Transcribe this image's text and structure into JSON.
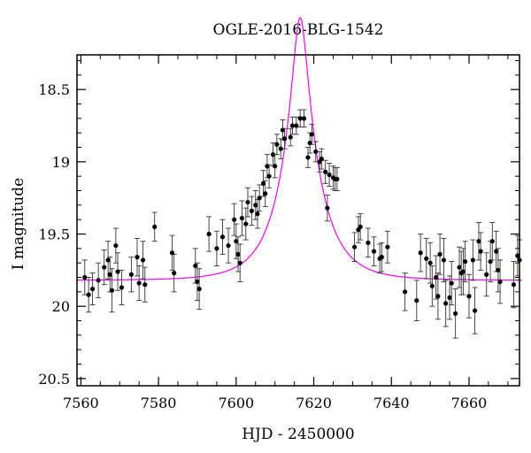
{
  "chart_data": {
    "type": "scatter",
    "title": "OGLE-2016-BLG-1542",
    "xlabel": "HJD - 2450000",
    "ylabel": "I magnitude",
    "xlim": [
      7559,
      7673
    ],
    "ylim": [
      20.55,
      18.26
    ],
    "y_inverted": true,
    "xticks": [
      7560,
      7580,
      7600,
      7620,
      7640,
      7660
    ],
    "yticks": [
      18.5,
      19,
      19.5,
      20,
      20.5
    ],
    "ytick_labels": [
      "18.5",
      "19",
      "19.5",
      "20",
      "20.5"
    ],
    "grid": false,
    "legend": "none",
    "colors": {
      "points": "#000000",
      "model": "#ff00ff"
    },
    "series": [
      {
        "kind": "data",
        "points": [
          [
            7561.0,
            19.8,
            0.12
          ],
          [
            7562.0,
            19.92,
            0.12
          ],
          [
            7563.0,
            19.88,
            0.11
          ],
          [
            7564.5,
            19.82,
            0.12
          ],
          [
            7566.0,
            19.73,
            0.12
          ],
          [
            7567.0,
            19.68,
            0.13
          ],
          [
            7567.5,
            19.78,
            0.12
          ],
          [
            7568.0,
            19.89,
            0.15
          ],
          [
            7569.0,
            19.58,
            0.12
          ],
          [
            7569.5,
            19.76,
            0.13
          ],
          [
            7570.5,
            19.87,
            0.12
          ],
          [
            7573.0,
            19.78,
            0.12
          ],
          [
            7574.5,
            19.66,
            0.13
          ],
          [
            7575.0,
            19.84,
            0.12
          ],
          [
            7576.0,
            19.68,
            0.13
          ],
          [
            7576.5,
            19.85,
            0.12
          ],
          [
            7579.0,
            19.45,
            0.1
          ],
          [
            7583.5,
            19.63,
            0.12
          ],
          [
            7584.0,
            19.77,
            0.13
          ],
          [
            7589.5,
            19.72,
            0.12
          ],
          [
            7590.0,
            19.83,
            0.13
          ],
          [
            7590.5,
            19.88,
            0.14
          ],
          [
            7593.0,
            19.5,
            0.12
          ],
          [
            7595.0,
            19.6,
            0.12
          ],
          [
            7596.5,
            19.52,
            0.12
          ],
          [
            7598.0,
            19.58,
            0.12
          ],
          [
            7599.5,
            19.4,
            0.11
          ],
          [
            7600.0,
            19.55,
            0.12
          ],
          [
            7600.5,
            19.64,
            0.12
          ],
          [
            7601.0,
            19.7,
            0.13
          ],
          [
            7601.5,
            19.39,
            0.12
          ],
          [
            7602.5,
            19.43,
            0.11
          ],
          [
            7603.0,
            19.28,
            0.1
          ],
          [
            7604.0,
            19.34,
            0.1
          ],
          [
            7605.0,
            19.3,
            0.1
          ],
          [
            7605.5,
            19.36,
            0.1
          ],
          [
            7606.0,
            19.25,
            0.09
          ],
          [
            7607.0,
            19.15,
            0.09
          ],
          [
            7607.5,
            19.22,
            0.09
          ],
          [
            7608.0,
            19.03,
            0.08
          ],
          [
            7608.5,
            19.1,
            0.08
          ],
          [
            7609.5,
            18.95,
            0.08
          ],
          [
            7610.0,
            19.03,
            0.08
          ],
          [
            7610.5,
            18.88,
            0.07
          ],
          [
            7611.5,
            18.91,
            0.07
          ],
          [
            7612.0,
            18.78,
            0.07
          ],
          [
            7612.5,
            18.84,
            0.07
          ],
          [
            7614.0,
            18.83,
            0.06
          ],
          [
            7614.5,
            18.75,
            0.06
          ],
          [
            7615.5,
            18.75,
            0.06
          ],
          [
            7616.5,
            18.7,
            0.06
          ],
          [
            7617.5,
            18.7,
            0.06
          ],
          [
            7618.5,
            18.97,
            0.07
          ],
          [
            7619.0,
            18.87,
            0.07
          ],
          [
            7619.5,
            18.81,
            0.07
          ],
          [
            7620.5,
            18.93,
            0.07
          ],
          [
            7621.5,
            19.0,
            0.07
          ],
          [
            7622.0,
            18.98,
            0.07
          ],
          [
            7623.0,
            19.07,
            0.08
          ],
          [
            7623.5,
            19.32,
            0.09
          ],
          [
            7624.0,
            19.09,
            0.08
          ],
          [
            7625.0,
            19.11,
            0.08
          ],
          [
            7625.5,
            19.12,
            0.08
          ],
          [
            7626.0,
            19.12,
            0.08
          ],
          [
            7630.5,
            19.59,
            0.1
          ],
          [
            7631.5,
            19.47,
            0.09
          ],
          [
            7632.0,
            19.45,
            0.09
          ],
          [
            7634.0,
            19.56,
            0.1
          ],
          [
            7635.5,
            19.62,
            0.1
          ],
          [
            7637.0,
            19.67,
            0.1
          ],
          [
            7637.5,
            19.66,
            0.1
          ],
          [
            7639.0,
            19.59,
            0.11
          ],
          [
            7643.5,
            19.9,
            0.13
          ],
          [
            7646.5,
            19.96,
            0.14
          ],
          [
            7647.5,
            19.63,
            0.13
          ],
          [
            7649.0,
            19.67,
            0.14
          ],
          [
            7650.0,
            19.7,
            0.14
          ],
          [
            7650.5,
            19.86,
            0.14
          ],
          [
            7651.5,
            19.8,
            0.15
          ],
          [
            7652.0,
            19.93,
            0.16
          ],
          [
            7652.5,
            19.64,
            0.14
          ],
          [
            7653.5,
            19.68,
            0.15
          ],
          [
            7654.0,
            19.98,
            0.16
          ],
          [
            7655.0,
            19.94,
            0.15
          ],
          [
            7655.5,
            19.84,
            0.15
          ],
          [
            7656.5,
            20.05,
            0.17
          ],
          [
            7657.5,
            19.73,
            0.14
          ],
          [
            7658.0,
            19.77,
            0.15
          ],
          [
            7658.5,
            19.76,
            0.16
          ],
          [
            7659.0,
            19.69,
            0.14
          ],
          [
            7660.0,
            19.93,
            0.15
          ],
          [
            7661.0,
            19.68,
            0.14
          ],
          [
            7661.5,
            20.03,
            0.16
          ],
          [
            7662.5,
            19.55,
            0.13
          ],
          [
            7663.0,
            19.62,
            0.13
          ],
          [
            7664.5,
            19.78,
            0.15
          ],
          [
            7665.5,
            19.69,
            0.14
          ],
          [
            7666.0,
            19.55,
            0.13
          ],
          [
            7667.0,
            19.62,
            0.14
          ],
          [
            7667.5,
            19.75,
            0.15
          ],
          [
            7668.0,
            19.83,
            0.15
          ],
          [
            7671.5,
            19.85,
            0.16
          ],
          [
            7672.5,
            19.65,
            0.14
          ],
          [
            7673.0,
            19.68,
            0.14
          ]
        ]
      },
      {
        "kind": "model",
        "type": "line",
        "t0": 7616.5,
        "tE": 9.5,
        "u0": 0.19,
        "baseline": 19.82,
        "xrange": [
          7559,
          7673
        ]
      }
    ]
  }
}
